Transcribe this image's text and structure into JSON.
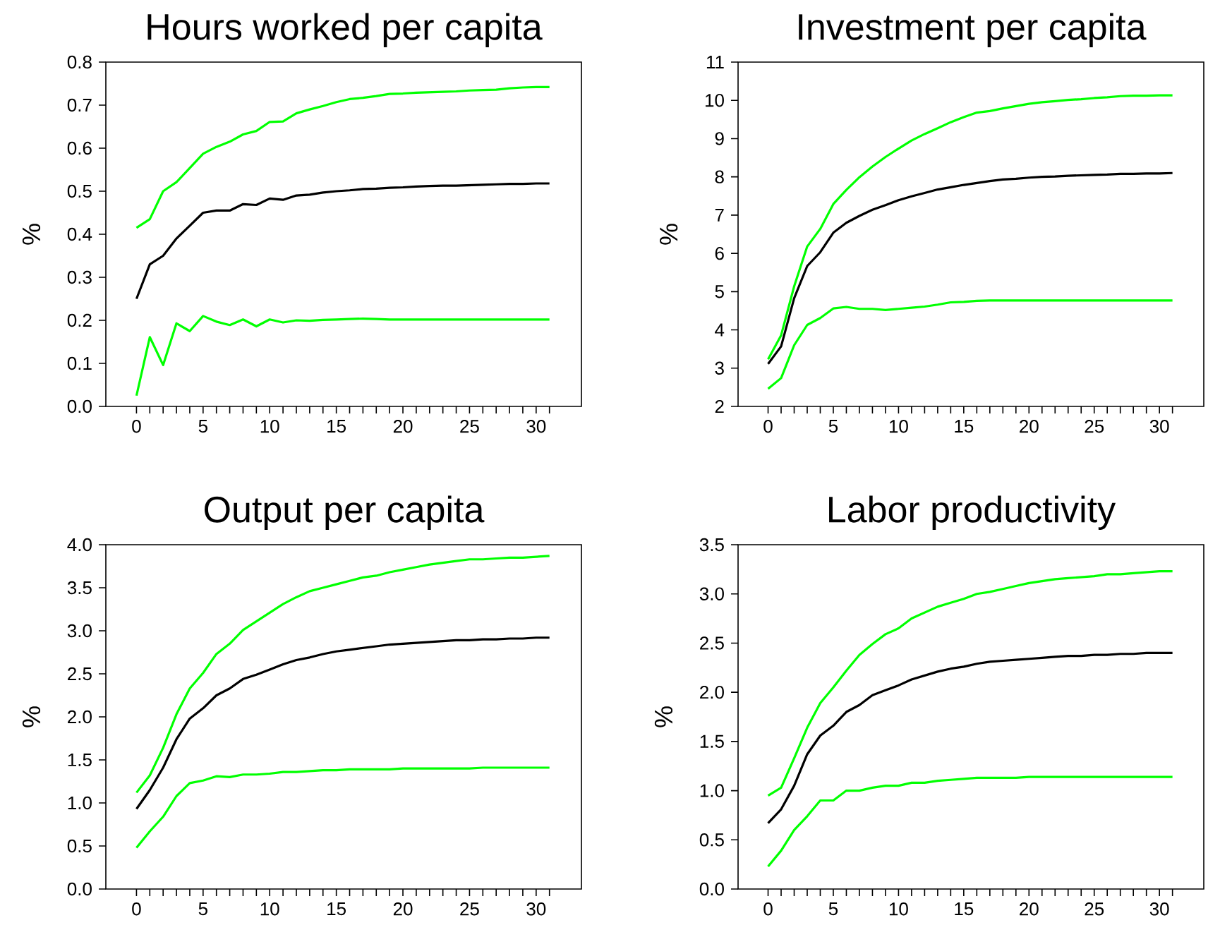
{
  "chart_data": [
    {
      "type": "line",
      "title": "Hours worked per capita",
      "ylabel": "%",
      "x": [
        0,
        1,
        2,
        3,
        4,
        5,
        6,
        7,
        8,
        9,
        10,
        11,
        12,
        13,
        14,
        15,
        16,
        17,
        18,
        19,
        20,
        21,
        22,
        23,
        24,
        25,
        26,
        27,
        28,
        29,
        30,
        31
      ],
      "xlim": [
        -2.3,
        33.4
      ],
      "ylim": [
        0,
        0.8
      ],
      "xticks": [
        0,
        {
          "value": 1,
          "label": null
        },
        {
          "value": 2,
          "label": null
        },
        {
          "value": 3,
          "label": null
        },
        {
          "value": 4,
          "label": null
        },
        5,
        {
          "value": 6,
          "label": null
        },
        {
          "value": 7,
          "label": null
        },
        {
          "value": 8,
          "label": null
        },
        {
          "value": 9,
          "label": null
        },
        10,
        {
          "value": 11,
          "label": null
        },
        {
          "value": 12,
          "label": null
        },
        {
          "value": 13,
          "label": null
        },
        {
          "value": 14,
          "label": null
        },
        15,
        {
          "value": 16,
          "label": null
        },
        {
          "value": 17,
          "label": null
        },
        {
          "value": 18,
          "label": null
        },
        {
          "value": 19,
          "label": null
        },
        20,
        {
          "value": 21,
          "label": null
        },
        {
          "value": 22,
          "label": null
        },
        {
          "value": 23,
          "label": null
        },
        {
          "value": 24,
          "label": null
        },
        25,
        {
          "value": 26,
          "label": null
        },
        {
          "value": 27,
          "label": null
        },
        {
          "value": 28,
          "label": null
        },
        {
          "value": 29,
          "label": null
        },
        30,
        {
          "value": 31,
          "label": null
        }
      ],
      "yticks": [
        {
          "value": 0,
          "label": "0.0"
        },
        0.1,
        0.2,
        0.3,
        0.4,
        0.5,
        0.6,
        0.7,
        0.8
      ],
      "series": [
        {
          "color": "#000000",
          "values": [
            0.25,
            0.33,
            0.35,
            0.39,
            0.42,
            0.45,
            0.455,
            0.455,
            0.47,
            0.468,
            0.483,
            0.48,
            0.49,
            0.492,
            0.497,
            0.5,
            0.502,
            0.505,
            0.506,
            0.508,
            0.509,
            0.511,
            0.512,
            0.513,
            0.513,
            0.514,
            0.515,
            0.516,
            0.517,
            0.517,
            0.518,
            0.518
          ]
        },
        {
          "color": "#00ff00",
          "values": [
            0.415,
            0.435,
            0.5,
            0.521,
            0.554,
            0.587,
            0.603,
            0.615,
            0.632,
            0.64,
            0.661,
            0.662,
            0.681,
            0.69,
            0.698,
            0.707,
            0.714,
            0.717,
            0.721,
            0.726,
            0.727,
            0.729,
            0.73,
            0.731,
            0.732,
            0.734,
            0.735,
            0.736,
            0.739,
            0.741,
            0.742,
            0.742
          ]
        },
        {
          "color": "#00ff00",
          "values": [
            0.025,
            0.161,
            0.096,
            0.193,
            0.175,
            0.21,
            0.197,
            0.189,
            0.202,
            0.186,
            0.202,
            0.195,
            0.2,
            0.199,
            0.201,
            0.202,
            0.203,
            0.204,
            0.203,
            0.202,
            0.202,
            0.202,
            0.202,
            0.202,
            0.202,
            0.202,
            0.202,
            0.202,
            0.202,
            0.202,
            0.202,
            0.202
          ]
        }
      ]
    },
    {
      "type": "line",
      "title": "Investment per capita",
      "ylabel": "%",
      "x": [
        0,
        1,
        2,
        3,
        4,
        5,
        6,
        7,
        8,
        9,
        10,
        11,
        12,
        13,
        14,
        15,
        16,
        17,
        18,
        19,
        20,
        21,
        22,
        23,
        24,
        25,
        26,
        27,
        28,
        29,
        30,
        31
      ],
      "xlim": [
        -2.3,
        33.4
      ],
      "ylim": [
        2,
        11
      ],
      "xticks": [
        0,
        {
          "value": 1,
          "label": null
        },
        {
          "value": 2,
          "label": null
        },
        {
          "value": 3,
          "label": null
        },
        {
          "value": 4,
          "label": null
        },
        5,
        {
          "value": 6,
          "label": null
        },
        {
          "value": 7,
          "label": null
        },
        {
          "value": 8,
          "label": null
        },
        {
          "value": 9,
          "label": null
        },
        10,
        {
          "value": 11,
          "label": null
        },
        {
          "value": 12,
          "label": null
        },
        {
          "value": 13,
          "label": null
        },
        {
          "value": 14,
          "label": null
        },
        15,
        {
          "value": 16,
          "label": null
        },
        {
          "value": 17,
          "label": null
        },
        {
          "value": 18,
          "label": null
        },
        {
          "value": 19,
          "label": null
        },
        20,
        {
          "value": 21,
          "label": null
        },
        {
          "value": 22,
          "label": null
        },
        {
          "value": 23,
          "label": null
        },
        {
          "value": 24,
          "label": null
        },
        25,
        {
          "value": 26,
          "label": null
        },
        {
          "value": 27,
          "label": null
        },
        {
          "value": 28,
          "label": null
        },
        {
          "value": 29,
          "label": null
        },
        30,
        {
          "value": 31,
          "label": null
        }
      ],
      "yticks": [
        2,
        3,
        4,
        5,
        6,
        7,
        8,
        9,
        10,
        11
      ],
      "series": [
        {
          "color": "#000000",
          "values": [
            3.11,
            3.57,
            4.83,
            5.67,
            6.03,
            6.54,
            6.8,
            6.98,
            7.14,
            7.26,
            7.39,
            7.49,
            7.58,
            7.67,
            7.73,
            7.79,
            7.84,
            7.89,
            7.93,
            7.95,
            7.98,
            8.0,
            8.01,
            8.03,
            8.04,
            8.05,
            8.06,
            8.08,
            8.08,
            8.09,
            8.09,
            8.1
          ]
        },
        {
          "color": "#00ff00",
          "values": [
            3.23,
            3.86,
            5.14,
            6.18,
            6.64,
            7.29,
            7.66,
            7.99,
            8.27,
            8.52,
            8.74,
            8.95,
            9.12,
            9.27,
            9.43,
            9.56,
            9.68,
            9.72,
            9.79,
            9.85,
            9.91,
            9.95,
            9.98,
            10.01,
            10.03,
            10.06,
            10.08,
            10.11,
            10.12,
            10.12,
            10.13,
            10.13
          ]
        },
        {
          "color": "#00ff00",
          "values": [
            2.46,
            2.74,
            3.6,
            4.13,
            4.31,
            4.56,
            4.6,
            4.55,
            4.55,
            4.52,
            4.55,
            4.58,
            4.61,
            4.66,
            4.72,
            4.73,
            4.76,
            4.77,
            4.77,
            4.77,
            4.77,
            4.77,
            4.77,
            4.77,
            4.77,
            4.77,
            4.77,
            4.77,
            4.77,
            4.77,
            4.77,
            4.77
          ]
        }
      ]
    },
    {
      "type": "line",
      "title": "Output per capita",
      "ylabel": "%",
      "x": [
        0,
        1,
        2,
        3,
        4,
        5,
        6,
        7,
        8,
        9,
        10,
        11,
        12,
        13,
        14,
        15,
        16,
        17,
        18,
        19,
        20,
        21,
        22,
        23,
        24,
        25,
        26,
        27,
        28,
        29,
        30,
        31
      ],
      "xlim": [
        -2.3,
        33.4
      ],
      "ylim": [
        0,
        4
      ],
      "xticks": [
        0,
        {
          "value": 1,
          "label": null
        },
        {
          "value": 2,
          "label": null
        },
        {
          "value": 3,
          "label": null
        },
        {
          "value": 4,
          "label": null
        },
        5,
        {
          "value": 6,
          "label": null
        },
        {
          "value": 7,
          "label": null
        },
        {
          "value": 8,
          "label": null
        },
        {
          "value": 9,
          "label": null
        },
        10,
        {
          "value": 11,
          "label": null
        },
        {
          "value": 12,
          "label": null
        },
        {
          "value": 13,
          "label": null
        },
        {
          "value": 14,
          "label": null
        },
        15,
        {
          "value": 16,
          "label": null
        },
        {
          "value": 17,
          "label": null
        },
        {
          "value": 18,
          "label": null
        },
        {
          "value": 19,
          "label": null
        },
        20,
        {
          "value": 21,
          "label": null
        },
        {
          "value": 22,
          "label": null
        },
        {
          "value": 23,
          "label": null
        },
        {
          "value": 24,
          "label": null
        },
        25,
        {
          "value": 26,
          "label": null
        },
        {
          "value": 27,
          "label": null
        },
        {
          "value": 28,
          "label": null
        },
        {
          "value": 29,
          "label": null
        },
        30,
        {
          "value": 31,
          "label": null
        }
      ],
      "yticks": [
        {
          "value": 0,
          "label": "0.0"
        },
        0.5,
        {
          "value": 1,
          "label": "1.0"
        },
        1.5,
        {
          "value": 2,
          "label": "2.0"
        },
        2.5,
        {
          "value": 3,
          "label": "3.0"
        },
        3.5,
        {
          "value": 4,
          "label": "4.0"
        }
      ],
      "series": [
        {
          "color": "#000000",
          "values": [
            0.93,
            1.15,
            1.41,
            1.74,
            1.98,
            2.1,
            2.25,
            2.33,
            2.44,
            2.49,
            2.55,
            2.61,
            2.66,
            2.69,
            2.73,
            2.76,
            2.78,
            2.8,
            2.82,
            2.84,
            2.85,
            2.86,
            2.87,
            2.88,
            2.89,
            2.89,
            2.9,
            2.9,
            2.91,
            2.91,
            2.92,
            2.92
          ]
        },
        {
          "color": "#00ff00",
          "values": [
            1.12,
            1.32,
            1.64,
            2.03,
            2.33,
            2.51,
            2.73,
            2.85,
            3.01,
            3.11,
            3.21,
            3.31,
            3.39,
            3.46,
            3.5,
            3.54,
            3.58,
            3.62,
            3.64,
            3.68,
            3.71,
            3.74,
            3.77,
            3.79,
            3.81,
            3.83,
            3.83,
            3.84,
            3.85,
            3.85,
            3.86,
            3.87
          ]
        },
        {
          "color": "#00ff00",
          "values": [
            0.48,
            0.67,
            0.84,
            1.08,
            1.23,
            1.26,
            1.31,
            1.3,
            1.33,
            1.33,
            1.34,
            1.36,
            1.36,
            1.37,
            1.38,
            1.38,
            1.39,
            1.39,
            1.39,
            1.39,
            1.4,
            1.4,
            1.4,
            1.4,
            1.4,
            1.4,
            1.41,
            1.41,
            1.41,
            1.41,
            1.41,
            1.41
          ]
        }
      ]
    },
    {
      "type": "line",
      "title": "Labor productivity",
      "ylabel": "%",
      "x": [
        0,
        1,
        2,
        3,
        4,
        5,
        6,
        7,
        8,
        9,
        10,
        11,
        12,
        13,
        14,
        15,
        16,
        17,
        18,
        19,
        20,
        21,
        22,
        23,
        24,
        25,
        26,
        27,
        28,
        29,
        30,
        31
      ],
      "xlim": [
        -2.3,
        33.4
      ],
      "ylim": [
        0,
        3.5
      ],
      "xticks": [
        0,
        {
          "value": 1,
          "label": null
        },
        {
          "value": 2,
          "label": null
        },
        {
          "value": 3,
          "label": null
        },
        {
          "value": 4,
          "label": null
        },
        5,
        {
          "value": 6,
          "label": null
        },
        {
          "value": 7,
          "label": null
        },
        {
          "value": 8,
          "label": null
        },
        {
          "value": 9,
          "label": null
        },
        10,
        {
          "value": 11,
          "label": null
        },
        {
          "value": 12,
          "label": null
        },
        {
          "value": 13,
          "label": null
        },
        {
          "value": 14,
          "label": null
        },
        15,
        {
          "value": 16,
          "label": null
        },
        {
          "value": 17,
          "label": null
        },
        {
          "value": 18,
          "label": null
        },
        {
          "value": 19,
          "label": null
        },
        20,
        {
          "value": 21,
          "label": null
        },
        {
          "value": 22,
          "label": null
        },
        {
          "value": 23,
          "label": null
        },
        {
          "value": 24,
          "label": null
        },
        25,
        {
          "value": 26,
          "label": null
        },
        {
          "value": 27,
          "label": null
        },
        {
          "value": 28,
          "label": null
        },
        {
          "value": 29,
          "label": null
        },
        30,
        {
          "value": 31,
          "label": null
        }
      ],
      "yticks": [
        {
          "value": 0,
          "label": "0.0"
        },
        0.5,
        {
          "value": 1,
          "label": "1.0"
        },
        1.5,
        {
          "value": 2,
          "label": "2.0"
        },
        2.5,
        {
          "value": 3,
          "label": "3.0"
        },
        3.5
      ],
      "series": [
        {
          "color": "#000000",
          "values": [
            0.67,
            0.81,
            1.05,
            1.37,
            1.56,
            1.66,
            1.8,
            1.87,
            1.97,
            2.02,
            2.07,
            2.13,
            2.17,
            2.21,
            2.24,
            2.26,
            2.29,
            2.31,
            2.32,
            2.33,
            2.34,
            2.35,
            2.36,
            2.37,
            2.37,
            2.38,
            2.38,
            2.39,
            2.39,
            2.4,
            2.4,
            2.4
          ]
        },
        {
          "color": "#00ff00",
          "values": [
            0.95,
            1.03,
            1.33,
            1.64,
            1.89,
            2.05,
            2.22,
            2.38,
            2.49,
            2.59,
            2.65,
            2.75,
            2.81,
            2.87,
            2.91,
            2.95,
            3.0,
            3.02,
            3.05,
            3.08,
            3.11,
            3.13,
            3.15,
            3.16,
            3.17,
            3.18,
            3.2,
            3.2,
            3.21,
            3.22,
            3.23,
            3.23
          ]
        },
        {
          "color": "#00ff00",
          "values": [
            0.23,
            0.39,
            0.6,
            0.74,
            0.9,
            0.9,
            1.0,
            1.0,
            1.03,
            1.05,
            1.05,
            1.08,
            1.08,
            1.1,
            1.11,
            1.12,
            1.13,
            1.13,
            1.13,
            1.13,
            1.14,
            1.14,
            1.14,
            1.14,
            1.14,
            1.14,
            1.14,
            1.14,
            1.14,
            1.14,
            1.14,
            1.14
          ]
        }
      ]
    }
  ]
}
